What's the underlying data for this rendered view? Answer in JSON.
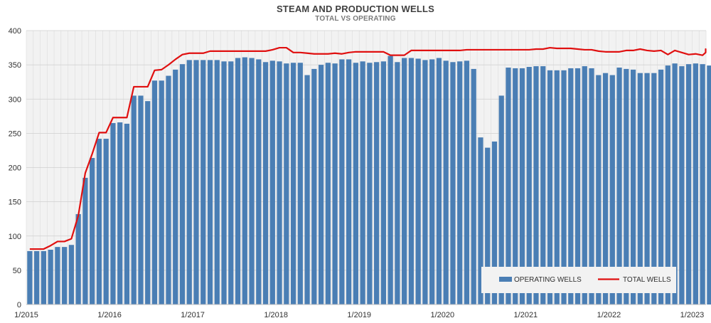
{
  "chart_data": {
    "type": "bar",
    "title": "STEAM AND PRODUCTION WELLS",
    "subtitle": "TOTAL VS OPERATING",
    "xlabel": "",
    "ylabel": "",
    "ylim": [
      0,
      400
    ],
    "yticks": [
      0,
      50,
      100,
      150,
      200,
      250,
      300,
      350,
      400
    ],
    "x_start": "2015-01",
    "x_tick_labels": [
      "1/2015",
      "1/2016",
      "1/2017",
      "1/2018",
      "1/2019",
      "1/2020",
      "1/2021",
      "1/2022",
      "1/2023"
    ],
    "grid": true,
    "legend_position": "bottom-right",
    "series": [
      {
        "name": "OPERATING WELLS",
        "type": "bar",
        "color": "#4a7eb4",
        "values": [
          78,
          78,
          78,
          80,
          84,
          84,
          87,
          132,
          185,
          214,
          242,
          242,
          265,
          266,
          264,
          305,
          305,
          297,
          327,
          327,
          334,
          343,
          351,
          357,
          357,
          357,
          357,
          357,
          355,
          355,
          360,
          361,
          360,
          358,
          354,
          356,
          355,
          352,
          353,
          353,
          335,
          344,
          350,
          353,
          352,
          358,
          358,
          353,
          355,
          353,
          354,
          355,
          363,
          354,
          360,
          360,
          359,
          357,
          358,
          360,
          356,
          354,
          355,
          356,
          344,
          244,
          229,
          238,
          305,
          346,
          345,
          345,
          347,
          348,
          348,
          342,
          342,
          342,
          345,
          345,
          348,
          345,
          335,
          338,
          335,
          346,
          344,
          343,
          338,
          338,
          338,
          343,
          349,
          352,
          348,
          351,
          352,
          351,
          349
        ]
      },
      {
        "name": "TOTAL WELLS",
        "type": "line",
        "color": "#e01010",
        "values": [
          81,
          81,
          81,
          86,
          92,
          92,
          96,
          130,
          192,
          220,
          251,
          251,
          273,
          273,
          273,
          318,
          318,
          318,
          342,
          343,
          350,
          358,
          365,
          367,
          367,
          367,
          370,
          370,
          370,
          370,
          370,
          370,
          370,
          370,
          370,
          372,
          375,
          375,
          368,
          368,
          367,
          366,
          366,
          366,
          367,
          366,
          368,
          369,
          369,
          369,
          369,
          369,
          364,
          364,
          364,
          371,
          371,
          371,
          371,
          371,
          371,
          371,
          371,
          372,
          372,
          372,
          372,
          372,
          372,
          372,
          372,
          372,
          372,
          373,
          373,
          375,
          374,
          374,
          374,
          373,
          372,
          372,
          370,
          369,
          369,
          369,
          371,
          371,
          373,
          371,
          370,
          371,
          365,
          371,
          368,
          365,
          366,
          364,
          368,
          370,
          373,
          371,
          370,
          371,
          371,
          370,
          370
        ]
      }
    ]
  }
}
